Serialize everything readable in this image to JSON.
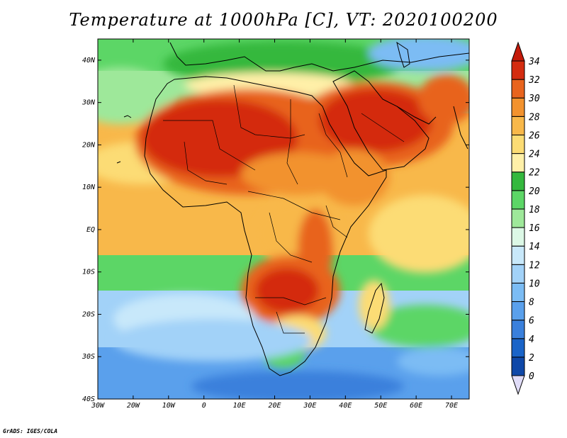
{
  "title": "Temperature at 1000hPa [C], VT: 2020100200",
  "credit": "GrADS: IGES/COLA",
  "map": {
    "projection": "latlon",
    "lon_range": [
      -30,
      75
    ],
    "lat_range": [
      -40,
      45
    ],
    "x_ticks": [
      {
        "lon": -30,
        "label": "30W"
      },
      {
        "lon": -20,
        "label": "20W"
      },
      {
        "lon": -10,
        "label": "10W"
      },
      {
        "lon": 0,
        "label": "0"
      },
      {
        "lon": 10,
        "label": "10E"
      },
      {
        "lon": 20,
        "label": "20E"
      },
      {
        "lon": 30,
        "label": "30E"
      },
      {
        "lon": 40,
        "label": "40E"
      },
      {
        "lon": 50,
        "label": "50E"
      },
      {
        "lon": 60,
        "label": "60E"
      },
      {
        "lon": 70,
        "label": "70E"
      }
    ],
    "y_ticks": [
      {
        "lat": 40,
        "label": "40N"
      },
      {
        "lat": 30,
        "label": "30N"
      },
      {
        "lat": 20,
        "label": "20N"
      },
      {
        "lat": 10,
        "label": "10N"
      },
      {
        "lat": 0,
        "label": "EQ"
      },
      {
        "lat": -10,
        "label": "10S"
      },
      {
        "lat": -20,
        "label": "20S"
      },
      {
        "lat": -30,
        "label": "30S"
      },
      {
        "lat": -40,
        "label": "40S"
      }
    ]
  },
  "colorbar": {
    "levels": [
      0,
      2,
      4,
      6,
      8,
      10,
      12,
      14,
      16,
      18,
      20,
      22,
      24,
      26,
      28,
      30,
      32,
      34
    ],
    "labels": [
      "0",
      "2",
      "4",
      "6",
      "8",
      "10",
      "12",
      "14",
      "16",
      "18",
      "20",
      "22",
      "24",
      "26",
      "28",
      "30",
      "32",
      "34"
    ],
    "colors": [
      "#0b2a78",
      "#0f48a8",
      "#1a64c8",
      "#3a80dc",
      "#5aa0ec",
      "#7bbcf4",
      "#a2d2f8",
      "#c8e8fa",
      "#dcf8e6",
      "#9ee89a",
      "#5cd666",
      "#34b83e",
      "#fff0a8",
      "#fcdc74",
      "#f8b84a",
      "#f2922e",
      "#e8641e",
      "#d42c10",
      "#c41a0a"
    ],
    "under_color": "#e0dcf8",
    "over_color": "#c41a0a"
  },
  "field_regions": [
    {
      "name": "sahara-west-hot",
      "value": 33
    },
    {
      "name": "arabia-hot",
      "value": 33
    },
    {
      "name": "southern-africa-hot",
      "value": 31
    },
    {
      "name": "south-atlantic-cool",
      "value": 13
    },
    {
      "name": "southern-ocean-cold",
      "value": 9
    },
    {
      "name": "mediterranean-mild",
      "value": 21
    }
  ]
}
